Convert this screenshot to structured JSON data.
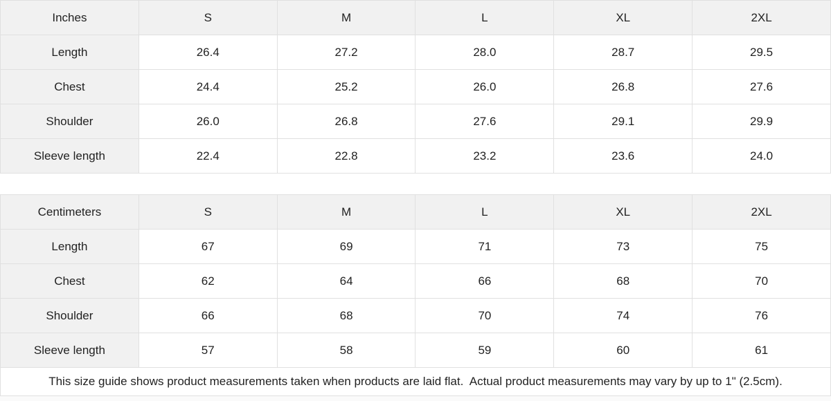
{
  "chart_data": [
    {
      "type": "table",
      "title": "Inches",
      "columns": [
        "Inches",
        "S",
        "M",
        "L",
        "XL",
        "2XL"
      ],
      "rows": [
        [
          "Length",
          "26.4",
          "27.2",
          "28.0",
          "28.7",
          "29.5"
        ],
        [
          "Chest",
          "24.4",
          "25.2",
          "26.0",
          "26.8",
          "27.6"
        ],
        [
          "Shoulder",
          "26.0",
          "26.8",
          "27.6",
          "29.1",
          "29.9"
        ],
        [
          "Sleeve length",
          "22.4",
          "22.8",
          "23.2",
          "23.6",
          "24.0"
        ]
      ]
    },
    {
      "type": "table",
      "title": "Centimeters",
      "columns": [
        "Centimeters",
        "S",
        "M",
        "L",
        "XL",
        "2XL"
      ],
      "rows": [
        [
          "Length",
          "67",
          "69",
          "71",
          "73",
          "75"
        ],
        [
          "Chest",
          "62",
          "64",
          "66",
          "68",
          "70"
        ],
        [
          "Shoulder",
          "66",
          "68",
          "70",
          "74",
          "76"
        ],
        [
          "Sleeve length",
          "57",
          "58",
          "59",
          "60",
          "61"
        ]
      ]
    }
  ],
  "note": "This size guide shows product measurements taken when products are laid flat.  Actual product measurements may vary by up to 1\" (2.5cm).",
  "colors": {
    "header_bg": "#f1f1f1",
    "border": "#e0e0e0",
    "text": "#222222",
    "page_bg": "#fafafa"
  }
}
